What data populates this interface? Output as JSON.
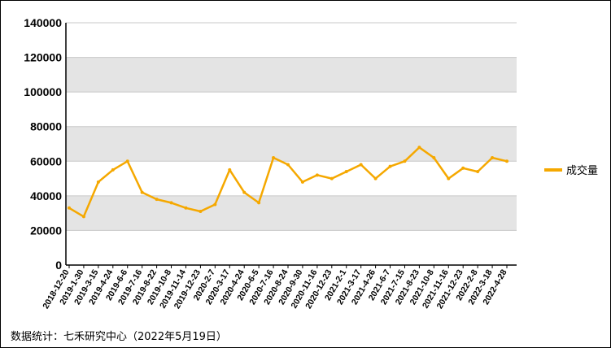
{
  "chart_data": {
    "type": "line",
    "title": "",
    "xlabel": "",
    "ylabel": "",
    "ylim": [
      0,
      140000
    ],
    "y_ticks": [
      0,
      20000,
      40000,
      60000,
      80000,
      100000,
      120000,
      140000
    ],
    "y_tick_labels": [
      "0",
      "20000",
      "40000",
      "60000",
      "80000",
      "100000",
      "120000",
      "140000"
    ],
    "x_tick_labels": [
      "2018-12-20",
      "2019-1-30",
      "2019-3-15",
      "2019-4-24",
      "2019-6-6",
      "2019-7-16",
      "2019-8-22",
      "2019-10-8",
      "2019-11-14",
      "2019-12-23",
      "2020-2-7",
      "2020-3-17",
      "2020-4-24",
      "2020-6-5",
      "2020-7-16",
      "2020-8-24",
      "2020-9-30",
      "2020-11-16",
      "2020-12-23",
      "2021-2-1",
      "2021-3-17",
      "2021-4-26",
      "2021-6-7",
      "2021-7-15",
      "2021-8-23",
      "2021-10-8",
      "2021-11-16",
      "2021-12-23",
      "2022-2-8",
      "2022-3-18",
      "2022-4-28"
    ],
    "legend": {
      "position": "right"
    },
    "grid": {
      "horizontal_bands": true
    },
    "colors": {
      "series": "#F5A800",
      "band": "#e4e4e4",
      "gridline": "#c8c8c8"
    },
    "series": [
      {
        "name": "成交量",
        "x": [
          "2018-12-20",
          "2019-1-30",
          "2019-3-15",
          "2019-4-24",
          "2019-6-6",
          "2019-7-16",
          "2019-8-22",
          "2019-10-8",
          "2019-11-14",
          "2019-12-23",
          "2020-2-7",
          "2020-3-17",
          "2020-4-24",
          "2020-6-5",
          "2020-7-16",
          "2020-8-24",
          "2020-9-30",
          "2020-11-16",
          "2020-12-23",
          "2021-2-1",
          "2021-3-17",
          "2021-4-26",
          "2021-6-7",
          "2021-7-15",
          "2021-8-23",
          "2021-10-8",
          "2021-11-16",
          "2021-12-23",
          "2022-2-8",
          "2022-3-18",
          "2022-4-28"
        ],
        "values": [
          33000,
          28000,
          48000,
          55000,
          60000,
          42000,
          38000,
          36000,
          33000,
          31000,
          35000,
          55000,
          42000,
          36000,
          62000,
          58000,
          48000,
          52000,
          50000,
          54000,
          58000,
          50000,
          57000,
          60000,
          68000,
          62000,
          50000,
          56000,
          54000,
          62000,
          60000
        ]
      }
    ]
  },
  "source_note": "数据统计：七禾研究中心（2022年5月19日）"
}
